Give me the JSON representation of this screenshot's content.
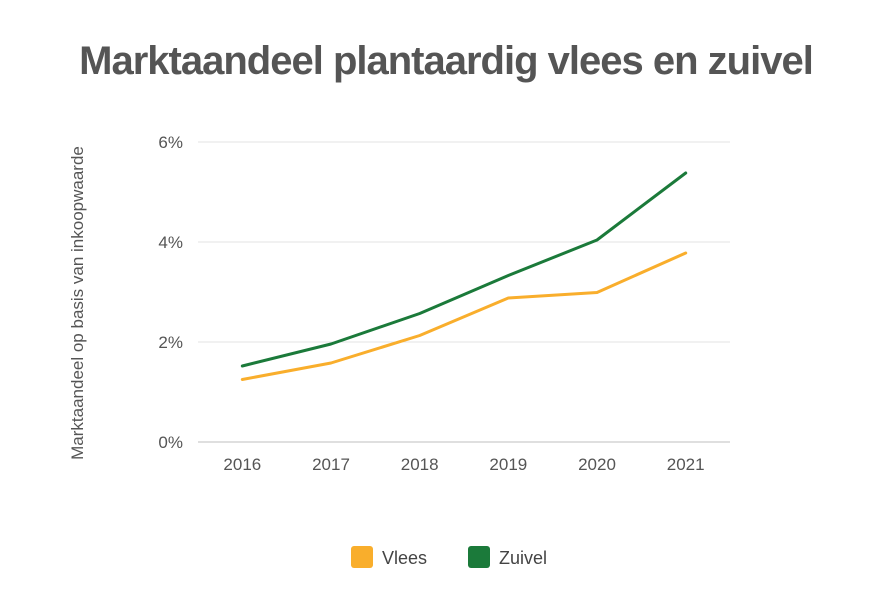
{
  "chart_data": {
    "type": "line",
    "title": "Marktaandeel plantaardig vlees en zuivel",
    "xlabel": "",
    "ylabel": "Marktaandeel op basis van inkoopwaarde",
    "categories": [
      "2016",
      "2017",
      "2018",
      "2019",
      "2020",
      "2021"
    ],
    "ylim": [
      0,
      6
    ],
    "yticks": [
      0,
      2,
      4,
      6
    ],
    "ytick_labels": [
      "0%",
      "2%",
      "4%",
      "6%"
    ],
    "grid": true,
    "legend_position": "bottom",
    "series": [
      {
        "name": "Vlees",
        "color": "#F9AE2C",
        "values": [
          1.25,
          1.58,
          2.13,
          2.88,
          2.99,
          3.78
        ]
      },
      {
        "name": "Zuivel",
        "color": "#1B7A3A",
        "values": [
          1.52,
          1.96,
          2.57,
          3.33,
          4.04,
          5.38
        ]
      }
    ]
  }
}
